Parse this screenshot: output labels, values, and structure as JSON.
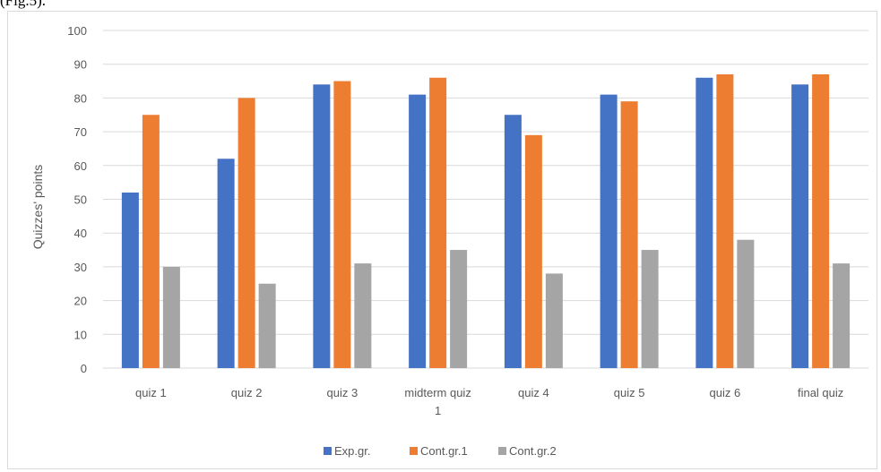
{
  "caption": "(Fig.5).",
  "chart_data": {
    "type": "bar",
    "title": "",
    "xlabel": "",
    "ylabel": "Quizzes' points",
    "ylim": [
      0,
      100
    ],
    "yticks": [
      0,
      10,
      20,
      30,
      40,
      50,
      60,
      70,
      80,
      90,
      100
    ],
    "grid": true,
    "legend_position": "bottom",
    "categories": [
      "quiz 1",
      "quiz 2",
      "quiz 3",
      "midterm quiz 1",
      "quiz 4",
      "quiz 5",
      "quiz 6",
      "final quiz"
    ],
    "category_lines": [
      [
        "quiz 1"
      ],
      [
        "quiz 2"
      ],
      [
        "quiz 3"
      ],
      [
        "midterm quiz",
        "1"
      ],
      [
        "quiz 4"
      ],
      [
        "quiz 5"
      ],
      [
        "quiz 6"
      ],
      [
        "final quiz"
      ]
    ],
    "series": [
      {
        "name": "Exp.gr.",
        "color": "#4472c4",
        "values": [
          52,
          62,
          84,
          81,
          75,
          81,
          86,
          84
        ]
      },
      {
        "name": "Cont.gr.1",
        "color": "#ed7d31",
        "values": [
          75,
          80,
          85,
          86,
          69,
          79,
          87,
          87
        ]
      },
      {
        "name": "Cont.gr.2",
        "color": "#a5a5a5",
        "values": [
          30,
          25,
          31,
          35,
          28,
          35,
          38,
          31
        ]
      }
    ],
    "colors": {
      "gridline": "#d9d9d9",
      "axis_line": "#d9d9d9",
      "text": "#595959"
    }
  }
}
